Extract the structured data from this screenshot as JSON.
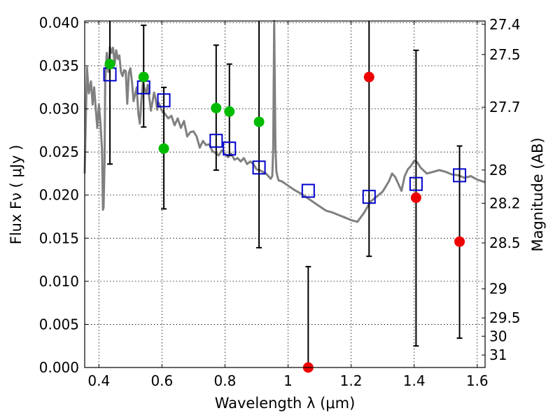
{
  "chart_data": {
    "type": "scatter",
    "title": "",
    "xlabel": "Wavelength  λ (μm)",
    "ylabel": "Flux  Fν  ( μJy )",
    "y2label": "Magnitude (AB)",
    "xlim": [
      0.355,
      1.625
    ],
    "ylim": [
      0.0,
      0.0402
    ],
    "grid": true,
    "x_ticks": [
      0.4,
      0.6,
      0.8,
      1.0,
      1.2,
      1.4,
      1.6
    ],
    "x_tick_labels": [
      "0.4",
      "0.6",
      "0.8",
      "1",
      "1.2",
      "1.4",
      "1.6"
    ],
    "y_ticks": [
      0.0,
      0.005,
      0.01,
      0.015,
      0.02,
      0.025,
      0.03,
      0.035,
      0.04
    ],
    "y_tick_labels": [
      "0.000",
      "0.005",
      "0.010",
      "0.015",
      "0.020",
      "0.025",
      "0.030",
      "0.035",
      "0.040"
    ],
    "y2_ticks": [
      27.4,
      27.5,
      27.7,
      28,
      28.2,
      28.5,
      29,
      29.5,
      30,
      31
    ],
    "y2_tick_labels": [
      "27.4",
      "27.5",
      "27.7",
      "28",
      "28.2",
      "28.5",
      "29",
      "29.5",
      "30",
      "31"
    ],
    "colors": {
      "model": "#808080",
      "green": "#00bb00",
      "red": "#ee0000",
      "box": "#0000cc",
      "errorbar": "#000000"
    },
    "series": [
      {
        "name": "model spectrum",
        "kind": "line",
        "x": [
          0.355,
          0.362,
          0.368,
          0.375,
          0.38,
          0.385,
          0.39,
          0.395,
          0.4,
          0.405,
          0.41,
          0.413,
          0.415,
          0.418,
          0.42,
          0.425,
          0.43,
          0.435,
          0.44,
          0.445,
          0.45,
          0.455,
          0.46,
          0.465,
          0.47,
          0.475,
          0.48,
          0.485,
          0.49,
          0.495,
          0.5,
          0.505,
          0.51,
          0.515,
          0.52,
          0.525,
          0.53,
          0.535,
          0.54,
          0.545,
          0.55,
          0.555,
          0.56,
          0.565,
          0.57,
          0.575,
          0.58,
          0.585,
          0.59,
          0.6,
          0.61,
          0.62,
          0.63,
          0.64,
          0.65,
          0.66,
          0.67,
          0.68,
          0.69,
          0.7,
          0.71,
          0.72,
          0.73,
          0.74,
          0.75,
          0.76,
          0.77,
          0.78,
          0.79,
          0.8,
          0.81,
          0.82,
          0.83,
          0.84,
          0.85,
          0.86,
          0.87,
          0.88,
          0.89,
          0.9,
          0.91,
          0.92,
          0.93,
          0.94,
          0.945,
          0.95,
          0.953,
          0.956,
          0.96,
          0.963,
          0.966,
          0.97,
          0.98,
          1.0,
          1.02,
          1.04,
          1.06,
          1.08,
          1.1,
          1.12,
          1.14,
          1.16,
          1.18,
          1.2,
          1.22,
          1.24,
          1.25,
          1.26,
          1.28,
          1.3,
          1.32,
          1.33,
          1.34,
          1.36,
          1.37,
          1.38,
          1.39,
          1.4,
          1.41,
          1.42,
          1.44,
          1.46,
          1.48,
          1.5,
          1.52,
          1.54,
          1.56,
          1.58,
          1.6,
          1.625
        ],
        "values": [
          0.0225,
          0.0348,
          0.0318,
          0.0332,
          0.0305,
          0.0325,
          0.03,
          0.0278,
          0.0305,
          0.0284,
          0.0252,
          0.0183,
          0.0186,
          0.024,
          0.0332,
          0.0365,
          0.0343,
          0.0372,
          0.0365,
          0.0371,
          0.0352,
          0.0368,
          0.0358,
          0.0362,
          0.0343,
          0.0338,
          0.0345,
          0.0344,
          0.0306,
          0.0342,
          0.0347,
          0.0331,
          0.0309,
          0.0317,
          0.0325,
          0.0295,
          0.0283,
          0.0311,
          0.0332,
          0.0323,
          0.0318,
          0.0328,
          0.0313,
          0.0298,
          0.0308,
          0.0319,
          0.0312,
          0.0299,
          0.0307,
          0.0298,
          0.0294,
          0.0289,
          0.0292,
          0.0281,
          0.0289,
          0.0278,
          0.0286,
          0.0268,
          0.0273,
          0.0274,
          0.0268,
          0.0255,
          0.0263,
          0.0258,
          0.0259,
          0.0251,
          0.0249,
          0.0246,
          0.0252,
          0.0248,
          0.0244,
          0.0248,
          0.0241,
          0.0243,
          0.0239,
          0.0243,
          0.0236,
          0.0239,
          0.0236,
          0.023,
          0.0229,
          0.0227,
          0.0225,
          0.0221,
          0.0219,
          0.0222,
          0.0255,
          0.0402,
          0.0255,
          0.0228,
          0.0222,
          0.0217,
          0.0216,
          0.0211,
          0.0206,
          0.0202,
          0.0197,
          0.0192,
          0.0187,
          0.0182,
          0.018,
          0.0177,
          0.0174,
          0.0171,
          0.0169,
          0.0179,
          0.0185,
          0.0192,
          0.0198,
          0.0204,
          0.0216,
          0.0225,
          0.0221,
          0.0205,
          0.0222,
          0.023,
          0.0234,
          0.024,
          0.0238,
          0.0232,
          0.0225,
          0.0227,
          0.0229,
          0.0227,
          0.0224,
          0.0223,
          0.022,
          0.0222,
          0.0218,
          0.0215
        ]
      },
      {
        "name": "green points",
        "kind": "points",
        "x": [
          0.435,
          0.542,
          0.606,
          0.772,
          0.814,
          0.908
        ],
        "values": [
          0.0352,
          0.0337,
          0.0254,
          0.0301,
          0.0297,
          0.0285
        ],
        "err_high": [
          0.0402,
          0.0397,
          0.0325,
          0.0374,
          0.0352,
          0.0402
        ],
        "err_low": [
          0.0236,
          0.0279,
          0.0184,
          0.0229,
          0.0246,
          0.0139
        ]
      },
      {
        "name": "red points",
        "kind": "points",
        "x": [
          1.064,
          1.257,
          1.406,
          1.544
        ],
        "values": [
          0.0,
          0.0337,
          0.0197,
          0.0146
        ],
        "err_high": [
          0.0117,
          0.0402,
          0.0368,
          0.0257
        ],
        "err_low": [
          0.0,
          0.0129,
          0.0025,
          0.0034
        ]
      },
      {
        "name": "model band fluxes",
        "kind": "boxes",
        "x": [
          0.435,
          0.542,
          0.606,
          0.772,
          0.814,
          0.908,
          1.064,
          1.257,
          1.406,
          1.544
        ],
        "values": [
          0.034,
          0.0325,
          0.031,
          0.0263,
          0.0254,
          0.0232,
          0.0205,
          0.0198,
          0.0213,
          0.0223
        ]
      }
    ]
  }
}
